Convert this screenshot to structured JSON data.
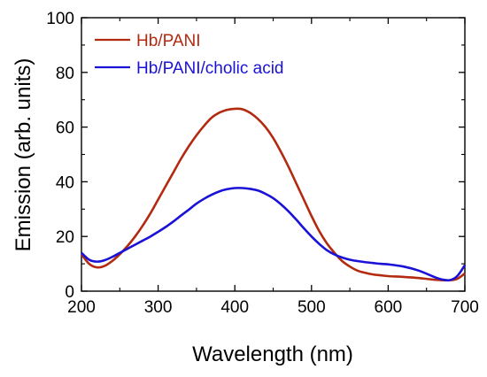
{
  "chart_data": {
    "type": "line",
    "title": "",
    "xlabel": "Wavelength (nm)",
    "ylabel": "Emission (arb. units)",
    "xlim": [
      200,
      700
    ],
    "ylim": [
      0,
      100
    ],
    "x_ticks": [
      "200",
      "300",
      "400",
      "500",
      "600",
      "700"
    ],
    "y_ticks": [
      "0",
      "20",
      "40",
      "60",
      "80",
      "100"
    ],
    "grid": false,
    "legend_placement": "top-left",
    "series": [
      {
        "name": "Hb/PANI",
        "color": "#b22a10",
        "x": [
          200,
          210,
          220,
          230,
          240,
          250,
          260,
          270,
          280,
          290,
          300,
          310,
          320,
          330,
          340,
          350,
          360,
          370,
          380,
          390,
          400,
          410,
          420,
          430,
          440,
          450,
          460,
          470,
          480,
          490,
          500,
          510,
          520,
          530,
          540,
          550,
          560,
          570,
          580,
          590,
          600,
          620,
          640,
          660,
          680,
          690,
          700
        ],
        "values": [
          13.5,
          10,
          8.7,
          9.2,
          11,
          13.5,
          16.5,
          20,
          24,
          28.5,
          33.5,
          38.5,
          43.5,
          48.5,
          53,
          57,
          60.5,
          63.5,
          65.3,
          66.3,
          66.7,
          66.5,
          65.2,
          63,
          60,
          56,
          51,
          45.5,
          39.5,
          33.5,
          27.5,
          22,
          17.5,
          14,
          11,
          9,
          7.5,
          6.7,
          6.1,
          5.8,
          5.5,
          5.2,
          4.8,
          4.2,
          4.0,
          4.5,
          6.5
        ]
      },
      {
        "name": "Hb/PANI/cholic acid",
        "color": "#1a12d6",
        "x": [
          200,
          210,
          220,
          230,
          240,
          250,
          260,
          270,
          280,
          290,
          300,
          310,
          320,
          330,
          340,
          350,
          360,
          370,
          380,
          390,
          400,
          410,
          420,
          430,
          440,
          450,
          460,
          470,
          480,
          490,
          500,
          510,
          520,
          530,
          540,
          550,
          560,
          570,
          580,
          590,
          600,
          620,
          640,
          660,
          670,
          680,
          690,
          700
        ],
        "values": [
          14,
          11.5,
          10.8,
          11.3,
          12.5,
          14,
          15.5,
          17,
          18.5,
          20,
          21.7,
          23.5,
          25.5,
          27.7,
          29.8,
          32,
          33.8,
          35.3,
          36.5,
          37.3,
          37.7,
          37.7,
          37.4,
          36.8,
          35.6,
          34,
          31.8,
          29.2,
          26.2,
          23,
          20,
          17.3,
          15,
          13.4,
          12.3,
          11.5,
          11,
          10.6,
          10.3,
          10,
          9.8,
          9,
          7.5,
          5.2,
          4.3,
          4.0,
          5.5,
          9.5
        ]
      }
    ]
  }
}
